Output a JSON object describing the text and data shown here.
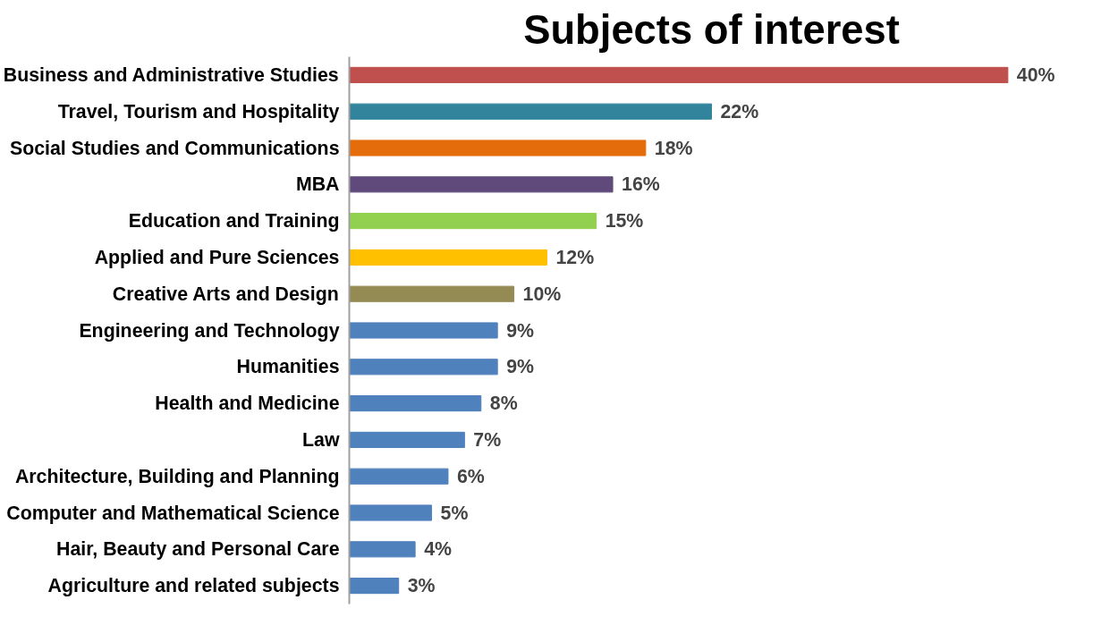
{
  "chart_data": {
    "type": "bar",
    "orientation": "horizontal",
    "title": "Subjects of interest",
    "categories": [
      "Business and Administrative Studies",
      "Travel, Tourism and Hospitality",
      "Social Studies and Communications",
      "MBA",
      "Education and Training",
      "Applied and Pure Sciences",
      "Creative Arts and Design",
      "Engineering and Technology",
      "Humanities",
      "Health and Medicine",
      "Law",
      "Architecture, Building and Planning",
      "Computer and Mathematical Science",
      "Hair, Beauty and Personal Care",
      "Agriculture and related subjects"
    ],
    "values": [
      40,
      22,
      18,
      16,
      15,
      12,
      10,
      9,
      9,
      8,
      7,
      6,
      5,
      4,
      3
    ],
    "value_labels": [
      "40%",
      "22%",
      "18%",
      "16%",
      "15%",
      "12%",
      "10%",
      "9%",
      "9%",
      "8%",
      "7%",
      "6%",
      "5%",
      "4%",
      "3%"
    ],
    "colors": [
      "#c0504d",
      "#31849b",
      "#e46c0a",
      "#604a7b",
      "#92d050",
      "#ffc000",
      "#948a54",
      "#4f81bd",
      "#4f81bd",
      "#4f81bd",
      "#4f81bd",
      "#4f81bd",
      "#4f81bd",
      "#4f81bd",
      "#4f81bd"
    ],
    "grid": false
  }
}
